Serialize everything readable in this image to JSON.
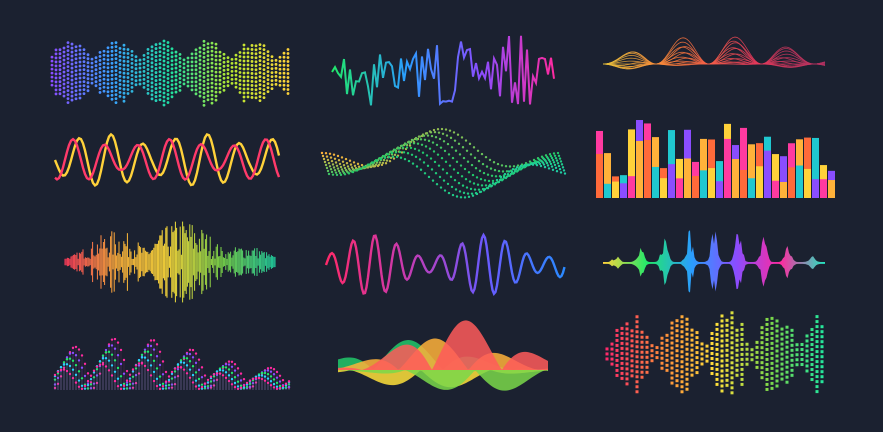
{
  "background": "#1b2130",
  "waves": [
    {
      "id": "dotted-spectrum",
      "style": "dotted-bars",
      "colors": [
        "#8a4dff",
        "#3aa0ff",
        "#20e0a0",
        "#b6e830",
        "#ffd23a"
      ]
    },
    {
      "id": "jagged-line",
      "style": "line",
      "colors": [
        "#21e86a",
        "#2a9dff",
        "#8a4dff",
        "#ff2aa0"
      ]
    },
    {
      "id": "spindle-mesh",
      "style": "mesh",
      "colors": [
        "#e8c23a",
        "#ff7a3a",
        "#e83a5a",
        "#b03060"
      ]
    },
    {
      "id": "double-sine",
      "style": "two-lines",
      "colors": [
        "#ffd23a",
        "#ff3a6a",
        "#c8e83a"
      ]
    },
    {
      "id": "dotted-3d-wave",
      "style": "dotted-ribbon",
      "colors": [
        "#ffb23a",
        "#21c86a",
        "#20d0b0"
      ]
    },
    {
      "id": "color-bars",
      "style": "bars",
      "colors": [
        "#ff3aa0",
        "#ffb23a",
        "#ff6a3a",
        "#20c8d0",
        "#ffd23a",
        "#8a4dff"
      ]
    },
    {
      "id": "noise-waveform",
      "style": "noise",
      "colors": [
        "#ff3a5a",
        "#ffb23a",
        "#ffe03a",
        "#7ad84a",
        "#20d0a0"
      ]
    },
    {
      "id": "pulse-line",
      "style": "smooth-line",
      "colors": [
        "#ff2a6a",
        "#c83ab0",
        "#6a5aff",
        "#2a8aff"
      ]
    },
    {
      "id": "symmetric-spikes",
      "style": "spikes",
      "colors": [
        "#ffd23a",
        "#21e86a",
        "#2a9dff",
        "#8a4dff",
        "#ff2aa0",
        "#21e8c0"
      ]
    },
    {
      "id": "dotted-mountains",
      "style": "dotted-peaks",
      "colors": [
        "#ff2aa0",
        "#8a4dff",
        "#21e86a",
        "#2ad0ff"
      ]
    },
    {
      "id": "filled-curves",
      "style": "filled",
      "colors": [
        "#ff5a5a",
        "#ffb23a",
        "#7ad84a",
        "#21c86a",
        "#ffe03a"
      ]
    },
    {
      "id": "dotted-squares",
      "style": "square-dots",
      "colors": [
        "#ff2a6a",
        "#ff8a3a",
        "#ffe03a",
        "#7ad84a",
        "#21e8a0"
      ]
    }
  ]
}
